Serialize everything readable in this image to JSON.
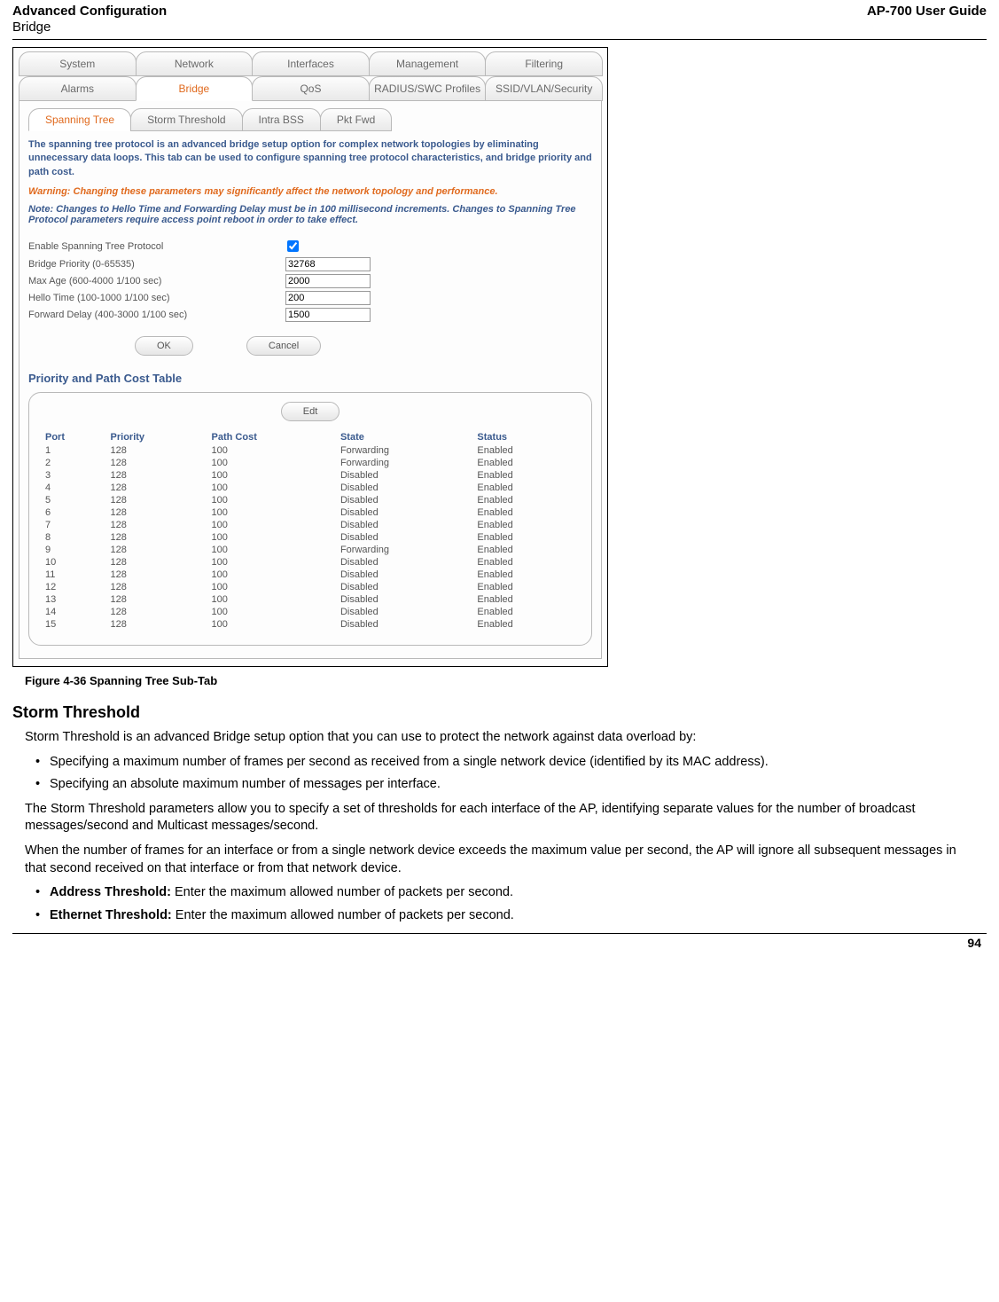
{
  "header": {
    "title": "Advanced Configuration",
    "subtitle": "Bridge",
    "guide": "AP-700 User Guide"
  },
  "tabs": {
    "row1": [
      "System",
      "Network",
      "Interfaces",
      "Management",
      "Filtering"
    ],
    "row2": [
      "Alarms",
      "Bridge",
      "QoS",
      "RADIUS/SWC Profiles",
      "SSID/VLAN/Security"
    ],
    "active_row2": "Bridge",
    "sub": [
      "Spanning Tree",
      "Storm Threshold",
      "Intra BSS",
      "Pkt Fwd"
    ],
    "active_sub": "Spanning Tree"
  },
  "panel": {
    "desc": "The spanning tree protocol is an advanced bridge setup option for complex network topologies by eliminating unnecessary data loops. This tab can be used to configure spanning tree protocol characteristics, and bridge priority and path cost.",
    "warning": "Warning: Changing these parameters may significantly affect the network topology and performance.",
    "note": "Note: Changes to Hello Time and Forwarding Delay must be in 100 millisecond increments. Changes to Spanning Tree Protocol parameters require access point reboot in order to take effect.",
    "fields": {
      "enable_label": "Enable Spanning Tree Protocol",
      "enable_checked": true,
      "priority_label": "Bridge Priority (0-65535)",
      "priority_value": "32768",
      "maxage_label": "Max Age (600-4000 1/100 sec)",
      "maxage_value": "2000",
      "hello_label": "Hello Time (100-1000 1/100 sec)",
      "hello_value": "200",
      "fwd_label": "Forward Delay (400-3000 1/100 sec)",
      "fwd_value": "1500"
    },
    "buttons": {
      "ok": "OK",
      "cancel": "Cancel",
      "edit": "Edt"
    },
    "ppc_title": "Priority and Path Cost Table",
    "ppc_headers": [
      "Port",
      "Priority",
      "Path Cost",
      "State",
      "Status"
    ],
    "ppc_rows": [
      [
        "1",
        "128",
        "100",
        "Forwarding",
        "Enabled"
      ],
      [
        "2",
        "128",
        "100",
        "Forwarding",
        "Enabled"
      ],
      [
        "3",
        "128",
        "100",
        "Disabled",
        "Enabled"
      ],
      [
        "4",
        "128",
        "100",
        "Disabled",
        "Enabled"
      ],
      [
        "5",
        "128",
        "100",
        "Disabled",
        "Enabled"
      ],
      [
        "6",
        "128",
        "100",
        "Disabled",
        "Enabled"
      ],
      [
        "7",
        "128",
        "100",
        "Disabled",
        "Enabled"
      ],
      [
        "8",
        "128",
        "100",
        "Disabled",
        "Enabled"
      ],
      [
        "9",
        "128",
        "100",
        "Forwarding",
        "Enabled"
      ],
      [
        "10",
        "128",
        "100",
        "Disabled",
        "Enabled"
      ],
      [
        "11",
        "128",
        "100",
        "Disabled",
        "Enabled"
      ],
      [
        "12",
        "128",
        "100",
        "Disabled",
        "Enabled"
      ],
      [
        "13",
        "128",
        "100",
        "Disabled",
        "Enabled"
      ],
      [
        "14",
        "128",
        "100",
        "Disabled",
        "Enabled"
      ],
      [
        "15",
        "128",
        "100",
        "Disabled",
        "Enabled"
      ]
    ]
  },
  "caption": "Figure 4-36 Spanning Tree Sub-Tab",
  "section_heading": "Storm Threshold",
  "body": {
    "intro": "Storm Threshold is an advanced Bridge setup option that you can use to protect the network against data overload by:",
    "bullets": [
      "Specifying a maximum number of frames per second as received from a single network device (identified by its MAC address).",
      "Specifying an absolute maximum number of messages per interface."
    ],
    "para2": "The Storm Threshold parameters allow you to specify a set of thresholds for each interface of the AP, identifying separate values for the number of broadcast messages/second and Multicast messages/second.",
    "para3": "When the number of frames for an interface or from a single network device exceeds the maximum value per second, the AP will ignore all subsequent messages in that second received on that interface or from that network device.",
    "items": [
      {
        "term": "Address Threshold:",
        "text": " Enter the maximum allowed number of packets per second."
      },
      {
        "term": "Ethernet Threshold:",
        "text": " Enter the maximum allowed number of packets per second."
      }
    ]
  },
  "page_number": "94",
  "colors": {
    "tab_text": "#6a6a6a",
    "active": "#e06a1e",
    "heading_blue": "#3a5a8e",
    "border": "#b9b9b9"
  }
}
